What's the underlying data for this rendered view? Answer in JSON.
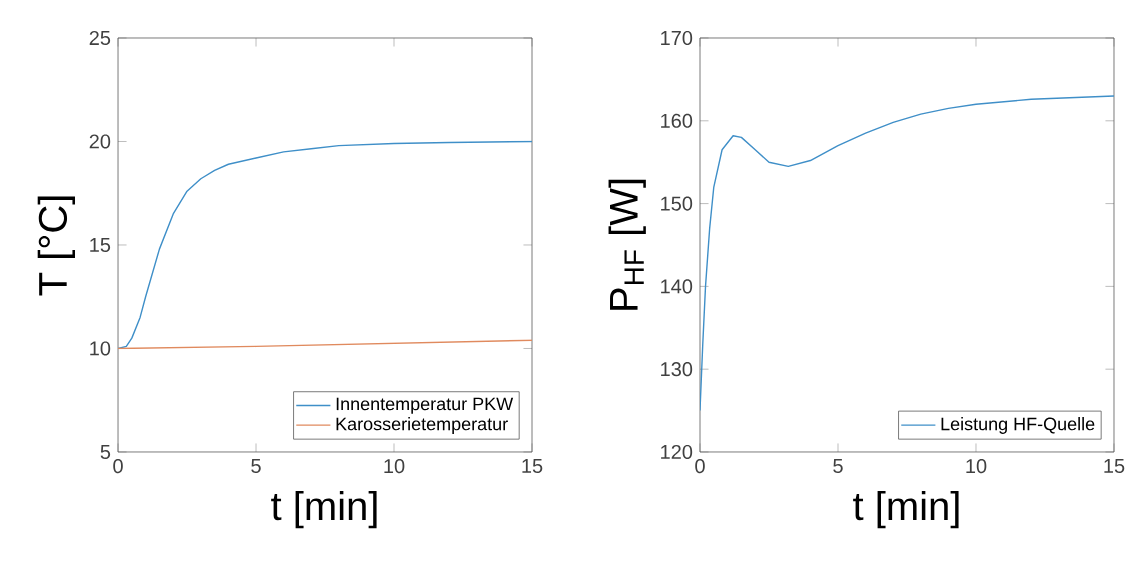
{
  "chart_data": [
    {
      "type": "line",
      "xlabel": "t [min]",
      "ylabel": "T [°C]",
      "xlim": [
        0,
        15
      ],
      "ylim": [
        5,
        25
      ],
      "xticks": [
        0,
        5,
        10,
        15
      ],
      "yticks": [
        5,
        10,
        15,
        20,
        25
      ],
      "legend": "bottom right",
      "grid": false,
      "series": [
        {
          "name": "Innentemperatur PKW",
          "color": "#3f8fc8",
          "x": [
            0,
            0.3,
            0.5,
            0.8,
            1,
            1.5,
            2,
            2.5,
            3,
            3.5,
            4,
            5,
            6,
            7,
            8,
            10,
            12,
            15
          ],
          "values": [
            10,
            10.1,
            10.5,
            11.5,
            12.5,
            14.8,
            16.5,
            17.6,
            18.2,
            18.6,
            18.9,
            19.2,
            19.5,
            19.65,
            19.8,
            19.9,
            19.95,
            20
          ]
        },
        {
          "name": "Karosserietemperatur",
          "color": "#e08a5e",
          "x": [
            0,
            5,
            10,
            15
          ],
          "values": [
            10,
            10.1,
            10.25,
            10.4
          ]
        }
      ]
    },
    {
      "type": "line",
      "xlabel": "t [min]",
      "ylabel": "P$_{HF}$ [W]",
      "xlim": [
        0,
        15
      ],
      "ylim": [
        120,
        170
      ],
      "xticks": [
        0,
        5,
        10,
        15
      ],
      "yticks": [
        120,
        130,
        140,
        150,
        160,
        170
      ],
      "legend": "bottom right",
      "grid": false,
      "series": [
        {
          "name": "Leistung HF-Quelle",
          "color": "#3f8fc8",
          "x": [
            0,
            0.1,
            0.2,
            0.35,
            0.5,
            0.8,
            1.2,
            1.5,
            2,
            2.5,
            3.2,
            4,
            5,
            6,
            7,
            8,
            9,
            10,
            12,
            15
          ],
          "values": [
            125,
            133,
            140,
            147,
            152,
            156.5,
            158.2,
            158,
            156.5,
            155,
            154.5,
            155.2,
            157,
            158.5,
            159.8,
            160.8,
            161.5,
            162,
            162.6,
            163
          ]
        }
      ]
    }
  ]
}
